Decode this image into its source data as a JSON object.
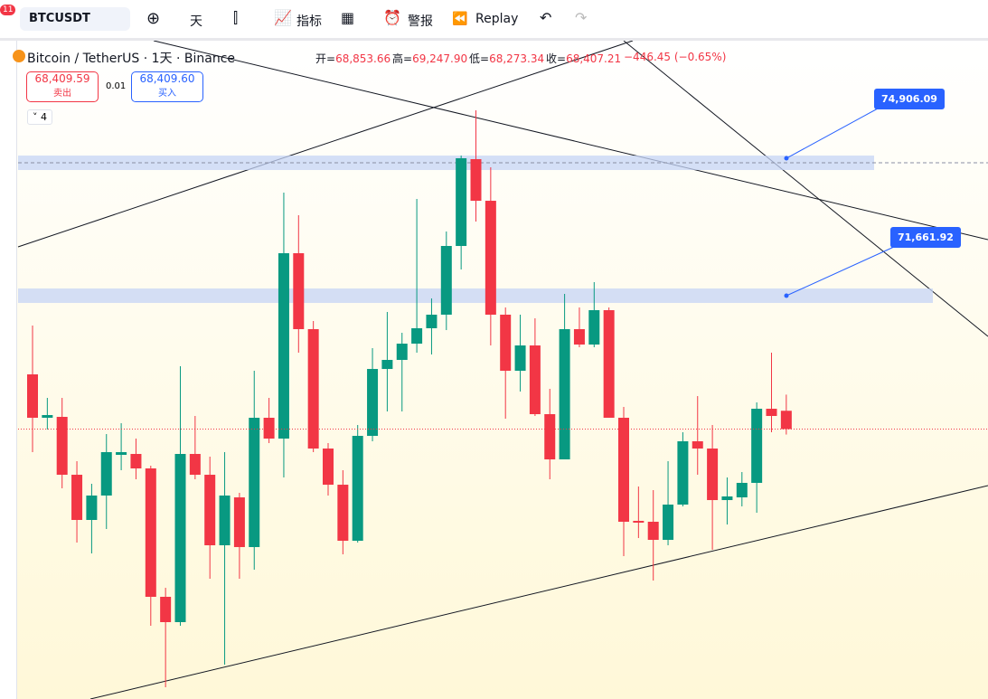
{
  "toolbar": {
    "badge": "11",
    "symbol": "BTCUSDT",
    "interval": "天",
    "indicators": "指标",
    "alerts": "警报",
    "replay": "Replay"
  },
  "header": {
    "title": "Bitcoin / TetherUS · 1天 · Binance",
    "ohlc": [
      {
        "label": "开=",
        "value": "68,853.66"
      },
      {
        "label": "高=",
        "value": "69,247.90"
      },
      {
        "label": "低=",
        "value": "68,273.34"
      },
      {
        "label": "收=",
        "value": "68,407.21"
      }
    ],
    "change": "−446.45 (−0.65%)",
    "sell": {
      "price": "68,409.59",
      "label": "卖出"
    },
    "spread": "0.01",
    "buy": {
      "price": "68,409.60",
      "label": "买入"
    },
    "indicator_count": "4"
  },
  "chart_data": {
    "type": "candlestick",
    "up_color": "#089981",
    "down_color": "#f23645",
    "ylim": [
      61819,
      77886
    ],
    "open": [
      69742,
      68683,
      68705,
      67292,
      66189,
      66785,
      67778,
      67800,
      67447,
      64313,
      63695,
      67800,
      67292,
      65571,
      66740,
      65527,
      68683,
      68175,
      72699,
      70846,
      67932,
      67049,
      65681,
      68241,
      69874,
      70095,
      70492,
      70868,
      71199,
      72876,
      74995,
      73979,
      71199,
      69830,
      70448,
      68771,
      67667,
      70846,
      70470,
      71309,
      68683,
      66167,
      66145,
      65703,
      66564,
      68109,
      67932,
      66674,
      66740,
      67094,
      68903,
      68853.66
    ],
    "high": [
      70934,
      69168,
      69168,
      67623,
      67072,
      68285,
      68550,
      68175,
      67513,
      64533,
      69941,
      68727,
      67734,
      67844,
      66851,
      69830,
      69168,
      74178,
      73626,
      71044,
      68065,
      67403,
      68506,
      70382,
      71265,
      70757,
      74024,
      71596,
      73229,
      75083,
      76186,
      74796,
      71375,
      71199,
      71110,
      69389,
      71706,
      71375,
      71993,
      71375,
      68947,
      67005,
      66917,
      67623,
      68330,
      69212,
      68506,
      67226,
      67358,
      69058,
      70272,
      69247.9
    ],
    "low": [
      67844,
      68396,
      66961,
      65637,
      65372,
      65968,
      67403,
      67182,
      63607,
      62106,
      63607,
      67182,
      64754,
      62658,
      64754,
      64975,
      68065,
      67226,
      70272,
      67844,
      66785,
      65350,
      65637,
      68109,
      68837,
      68837,
      70272,
      70228,
      70823,
      72302,
      73472,
      70448,
      68661,
      69323,
      68727,
      67182,
      67667,
      70404,
      70404,
      68683,
      65306,
      65747,
      64710,
      65571,
      66520,
      67292,
      65460,
      66078,
      66520,
      66365,
      68330,
      68273.34
    ],
    "close": [
      68683,
      68749,
      67292,
      66189,
      66785,
      67844,
      67844,
      67447,
      64313,
      63695,
      67800,
      67292,
      65571,
      66785,
      65527,
      68683,
      68175,
      72699,
      70846,
      67932,
      67049,
      65681,
      68241,
      69874,
      70095,
      70492,
      70868,
      71199,
      72876,
      75017,
      73979,
      71199,
      69830,
      70448,
      68771,
      67667,
      70846,
      70470,
      71309,
      68683,
      66145,
      66123,
      65703,
      66564,
      68109,
      67932,
      66674,
      66763,
      67094,
      68903,
      68727,
      68407.21
    ],
    "levels": [
      {
        "value": 74906.09,
        "label": "74,906.09"
      },
      {
        "value": 71661.92,
        "label": "71,661.92"
      }
    ]
  }
}
